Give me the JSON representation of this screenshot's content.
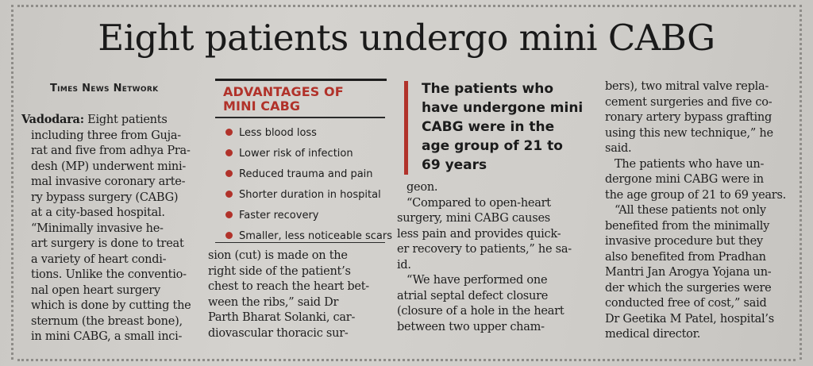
{
  "headline": "Eight patients undergo mini CABG",
  "byline": "Times News Network",
  "sidebar": {
    "title_line1": "ADVANTAGES OF",
    "title_line2": "MINI CABG",
    "items": [
      "Less blood loss",
      "Lower risk of infection",
      "Reduced trauma and pain",
      "Shorter duration in hospital",
      "Faster recovery",
      "Smaller, less noticeable scars"
    ]
  },
  "pullquote": {
    "lines": [
      "The patients who",
      "have undergone mini",
      "CABG were in the",
      "age group of 21 to",
      "69 years"
    ]
  },
  "col1": {
    "dateline": "Vadodara:",
    "lines": [
      "Eight patients",
      "including three from Guja-",
      "rat and five from adhya Pra-",
      "desh (MP) underwent mini-",
      "mal invasive coronary arte-",
      "ry bypass surgery (CABG)",
      "at a city-based hospital.",
      "“Minimally invasive he-",
      "art surgery is done to treat",
      "a variety of heart condi-",
      "tions. Unlike the conventio-",
      "nal open heart surgery",
      "which is done by cutting the",
      "sternum (the breast bone),",
      "in mini CABG, a small inci-"
    ]
  },
  "col2": {
    "lines": [
      "sion (cut) is made on the",
      "right side of the patient’s",
      "chest to reach the heart bet-",
      "ween the ribs,” said Dr",
      "Parth Bharat Solanki, car-",
      "diovascular thoracic sur-"
    ]
  },
  "col3": {
    "lines": [
      "geon.",
      "“Compared to open-heart",
      "surgery, mini CABG causes",
      "less pain and provides quick-",
      "er recovery to patients,” he sa-",
      "id.",
      "“We have performed one",
      "atrial septal defect closure",
      "(closure of a hole in the heart",
      "between two upper cham-"
    ]
  },
  "col4": {
    "lines": [
      "bers), two mitral valve repla-",
      "cement surgeries and five co-",
      "ronary artery bypass grafting",
      "using this new technique,” he",
      "said.",
      "The patients who have un-",
      "dergone mini CABG were in",
      "the age group of 21 to 69 years.",
      "“All these patients not only",
      "benefited from the minimally",
      "invasive procedure but they",
      "also benefited from Pradhan",
      "Mantri Jan Arogya Yojana un-",
      "der which the surgeries were",
      "conducted free of cost,” said",
      "Dr Geetika M Patel, hospital’s",
      "medical director."
    ]
  },
  "colors": {
    "accent_red": "#b1322a",
    "paper": "#cfcdc9",
    "ink": "#1c1c1c"
  }
}
